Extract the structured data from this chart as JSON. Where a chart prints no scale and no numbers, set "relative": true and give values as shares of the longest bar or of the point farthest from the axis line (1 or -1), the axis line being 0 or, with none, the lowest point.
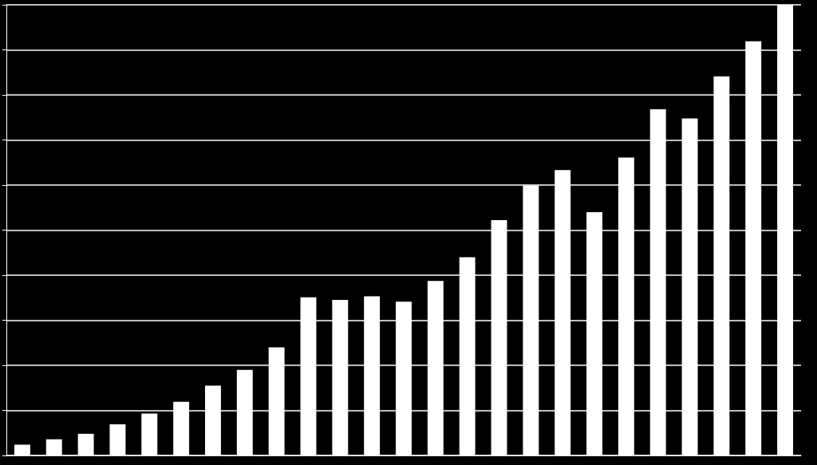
{
  "chart_data": {
    "type": "bar",
    "relative": true,
    "grid": "y",
    "color": "#ffffff",
    "categories": [
      null,
      null,
      null,
      null,
      null,
      null,
      null,
      null,
      null,
      null,
      null,
      null,
      null,
      null,
      null,
      null,
      null,
      null,
      null,
      null,
      null,
      null,
      null,
      null,
      null
    ],
    "values": [
      0.024,
      0.036,
      0.048,
      0.069,
      0.093,
      0.119,
      0.155,
      0.19,
      0.24,
      0.351,
      0.345,
      0.353,
      0.341,
      0.387,
      0.44,
      0.522,
      0.599,
      0.633,
      0.54,
      0.661,
      0.768,
      0.748,
      0.841,
      0.919,
      1
    ]
  }
}
